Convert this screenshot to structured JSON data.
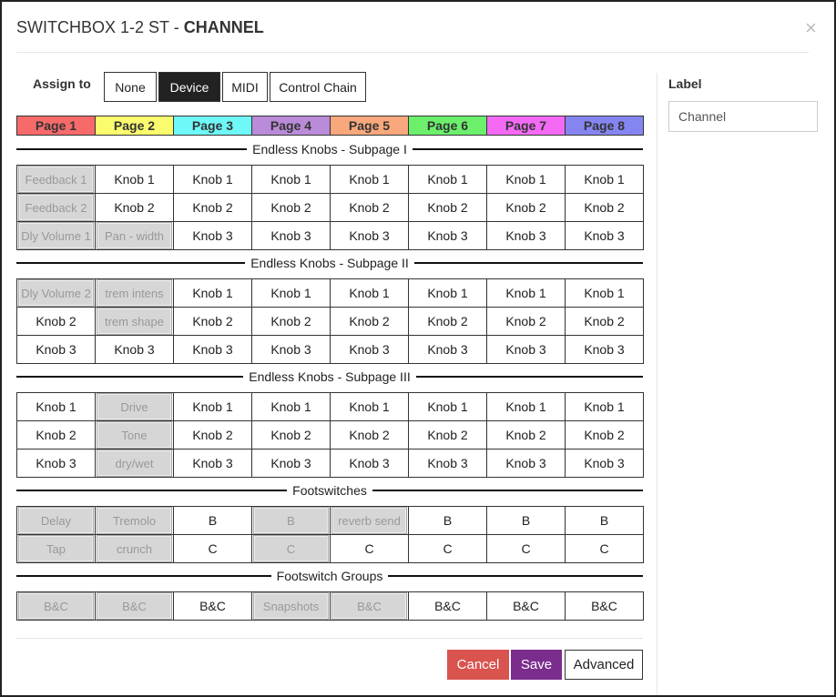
{
  "header": {
    "title_prefix": "SWITCHBOX 1-2 ST - ",
    "title_bold": "CHANNEL",
    "close": "×"
  },
  "assign": {
    "label": "Assign to",
    "options": [
      "None",
      "Device",
      "MIDI",
      "Control Chain"
    ],
    "active": 1
  },
  "pages": [
    {
      "name": "Page 1",
      "color": "#f66a6a"
    },
    {
      "name": "Page 2",
      "color": "#fbfb6e"
    },
    {
      "name": "Page 3",
      "color": "#6ef8f8"
    },
    {
      "name": "Page 4",
      "color": "#b98bd9"
    },
    {
      "name": "Page 5",
      "color": "#f8a87c"
    },
    {
      "name": "Page 6",
      "color": "#6cf06c"
    },
    {
      "name": "Page 7",
      "color": "#f46af4"
    },
    {
      "name": "Page 8",
      "color": "#8585f2"
    }
  ],
  "sections": [
    {
      "title": "Endless Knobs - Subpage I",
      "rows": [
        [
          {
            "label": "Feedback 1",
            "assigned": true
          },
          "Knob 1",
          "Knob 1",
          "Knob 1",
          "Knob 1",
          "Knob 1",
          "Knob 1",
          "Knob 1"
        ],
        [
          {
            "label": "Feedback 2",
            "assigned": true
          },
          "Knob 2",
          "Knob 2",
          "Knob 2",
          "Knob 2",
          "Knob 2",
          "Knob 2",
          "Knob 2"
        ],
        [
          {
            "label": "Dly Volume 1",
            "assigned": true
          },
          {
            "label": "Pan - width",
            "assigned": true
          },
          "Knob 3",
          "Knob 3",
          "Knob 3",
          "Knob 3",
          "Knob 3",
          "Knob 3"
        ]
      ]
    },
    {
      "title": "Endless Knobs - Subpage II",
      "rows": [
        [
          {
            "label": "Dly Volume 2",
            "assigned": true
          },
          {
            "label": "trem intens",
            "assigned": true
          },
          "Knob 1",
          "Knob 1",
          "Knob 1",
          "Knob 1",
          "Knob 1",
          "Knob 1"
        ],
        [
          "Knob 2",
          {
            "label": "trem shape",
            "assigned": true
          },
          "Knob 2",
          "Knob 2",
          "Knob 2",
          "Knob 2",
          "Knob 2",
          "Knob 2"
        ],
        [
          "Knob 3",
          "Knob 3",
          "Knob 3",
          "Knob 3",
          "Knob 3",
          "Knob 3",
          "Knob 3",
          "Knob 3"
        ]
      ]
    },
    {
      "title": "Endless Knobs - Subpage III",
      "rows": [
        [
          "Knob 1",
          {
            "label": "Drive",
            "assigned": true
          },
          "Knob 1",
          "Knob 1",
          "Knob 1",
          "Knob 1",
          "Knob 1",
          "Knob 1"
        ],
        [
          "Knob 2",
          {
            "label": "Tone",
            "assigned": true
          },
          "Knob 2",
          "Knob 2",
          "Knob 2",
          "Knob 2",
          "Knob 2",
          "Knob 2"
        ],
        [
          "Knob 3",
          {
            "label": "dry/wet",
            "assigned": true
          },
          "Knob 3",
          "Knob 3",
          "Knob 3",
          "Knob 3",
          "Knob 3",
          "Knob 3"
        ]
      ]
    },
    {
      "title": "Footswitches",
      "rows": [
        [
          {
            "label": "Delay",
            "assigned": true
          },
          {
            "label": "Tremolo",
            "assigned": true
          },
          "B",
          {
            "label": "B",
            "assigned": true
          },
          {
            "label": "reverb send",
            "assigned": true
          },
          "B",
          "B",
          "B"
        ],
        [
          {
            "label": "Tap",
            "assigned": true
          },
          {
            "label": "crunch",
            "assigned": true
          },
          "C",
          {
            "label": "C",
            "assigned": true
          },
          "C",
          "C",
          "C",
          "C"
        ]
      ]
    },
    {
      "title": "Footswitch Groups",
      "rows": [
        [
          {
            "label": "B&C",
            "assigned": true
          },
          {
            "label": "B&C",
            "assigned": true
          },
          "B&C",
          {
            "label": "Snapshots",
            "assigned": true
          },
          {
            "label": "B&C",
            "assigned": true
          },
          "B&C",
          "B&C",
          "B&C"
        ]
      ]
    }
  ],
  "side": {
    "label": "Label",
    "value": "Channel"
  },
  "buttons": {
    "cancel": "Cancel",
    "save": "Save",
    "advanced": "Advanced"
  }
}
